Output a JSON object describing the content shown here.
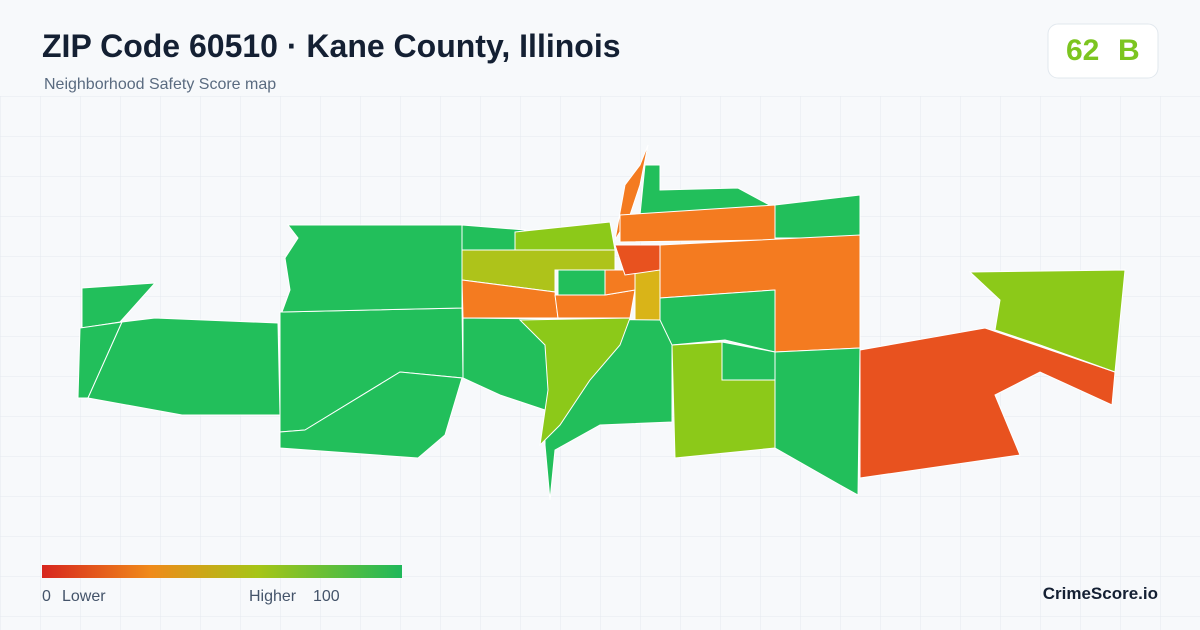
{
  "header": {
    "title": "ZIP Code 60510 · Kane County, Illinois",
    "subtitle": "Neighborhood Safety Score map"
  },
  "score": {
    "value": "62",
    "grade": "B"
  },
  "legend": {
    "min": "0",
    "min_label": "Lower",
    "max_label": "Higher",
    "max": "100"
  },
  "footer": {
    "brand": "CrimeScore.io"
  }
}
